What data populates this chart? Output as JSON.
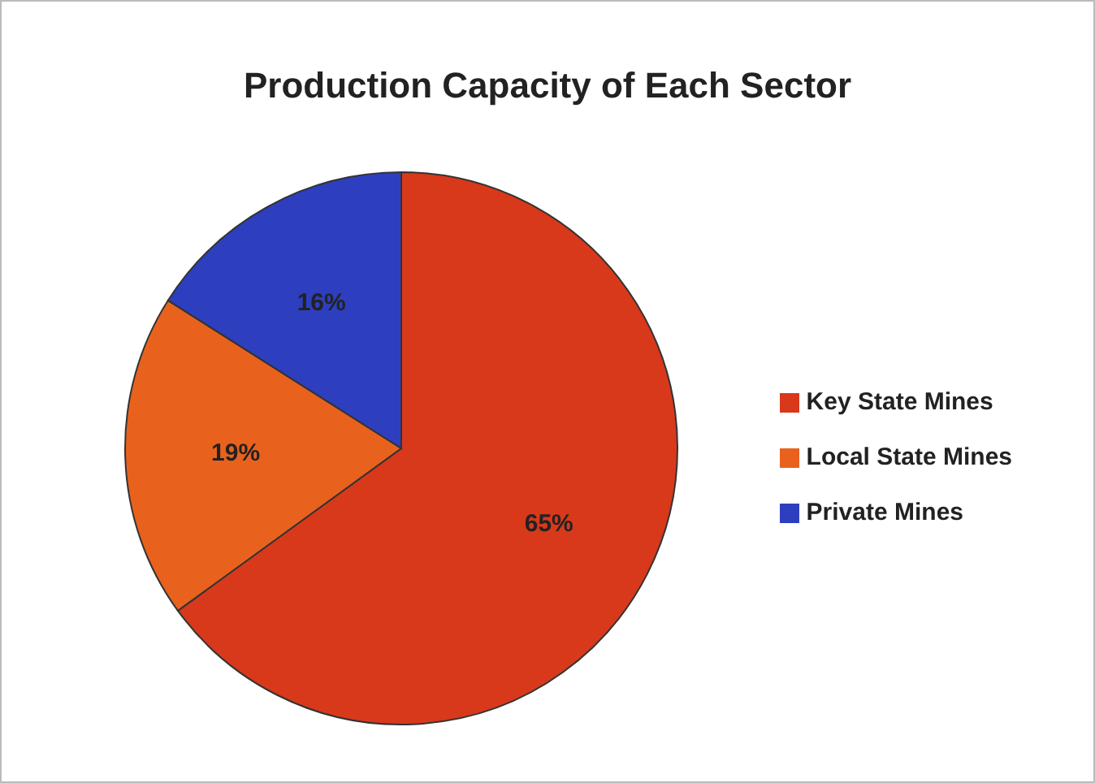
{
  "chart_data": {
    "type": "pie",
    "title": "Production Capacity of Each Sector",
    "categories": [
      "Key State Mines",
      "Local State Mines",
      "Private Mines"
    ],
    "values": [
      65,
      19,
      16
    ],
    "colors": [
      "#d8391b",
      "#e8621e",
      "#2d3fbf"
    ],
    "value_labels": [
      "65%",
      "19%",
      "16%"
    ],
    "legend": "right"
  }
}
